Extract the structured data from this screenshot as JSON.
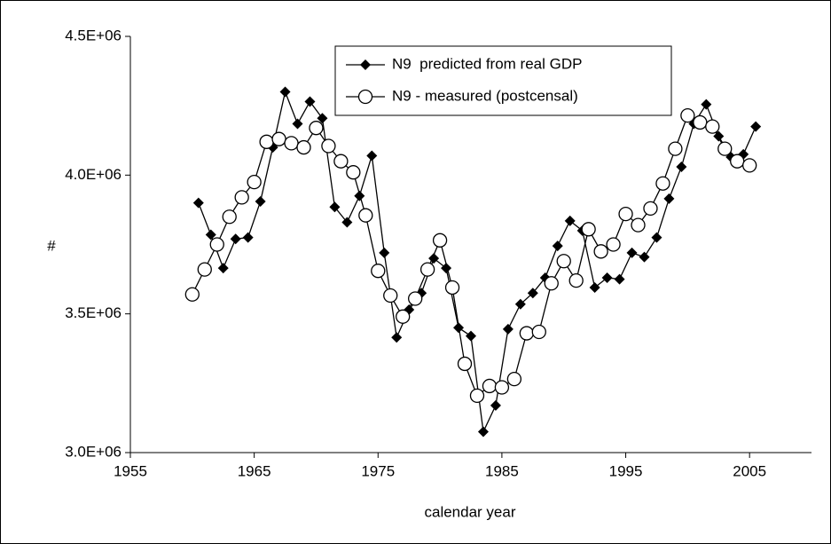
{
  "chart_data": {
    "type": "line",
    "x_label": "calendar year",
    "y_label": "#",
    "xlim": [
      1955,
      2010
    ],
    "xticks": [
      1955,
      1965,
      1975,
      1985,
      1995,
      2005
    ],
    "ylim": [
      3000000,
      4500000
    ],
    "yticks": [
      {
        "value": 3000000,
        "label": "3.0E+06"
      },
      {
        "value": 3500000,
        "label": "3.5E+06"
      },
      {
        "value": 4000000,
        "label": "4.0E+06"
      },
      {
        "value": 4500000,
        "label": "4.5E+06"
      }
    ],
    "grid": false,
    "legend": "top",
    "series": [
      {
        "name": "N9  predicted from real GDP",
        "color": "#000000",
        "marker": "diamond",
        "x": [
          1960.5,
          1961.5,
          1962.5,
          1963.5,
          1964.5,
          1965.5,
          1966.5,
          1967.5,
          1968.5,
          1969.5,
          1970.5,
          1971.5,
          1972.5,
          1973.5,
          1974.5,
          1975.5,
          1976.5,
          1977.5,
          1978.5,
          1979.5,
          1980.5,
          1981.5,
          1982.5,
          1983.5,
          1984.5,
          1985.5,
          1986.5,
          1987.5,
          1988.5,
          1989.5,
          1990.5,
          1991.5,
          1992.5,
          1993.5,
          1994.5,
          1995.5,
          1996.5,
          1997.5,
          1998.5,
          1999.5,
          2000.5,
          2001.5,
          2002.5,
          2003.5,
          2004.5,
          2005.5
        ],
        "values": [
          3900000,
          3785000,
          3665000,
          3770000,
          3775000,
          3905000,
          4100000,
          4300000,
          4185000,
          4265000,
          4205000,
          3885000,
          3830000,
          3925000,
          4070000,
          3720000,
          3415000,
          3515000,
          3575000,
          3700000,
          3665000,
          3450000,
          3420000,
          3075000,
          3170000,
          3445000,
          3535000,
          3575000,
          3630000,
          3745000,
          3835000,
          3800000,
          3595000,
          3630000,
          3625000,
          3720000,
          3705000,
          3775000,
          3915000,
          4030000,
          4185000,
          4255000,
          4140000,
          4065000,
          4075000,
          4175000
        ]
      },
      {
        "name": "N9 - measured (postcensal)",
        "color": "#000000",
        "marker": "circle",
        "x": [
          1960,
          1961,
          1962,
          1963,
          1964,
          1965,
          1966,
          1967,
          1968,
          1969,
          1970,
          1971,
          1972,
          1973,
          1974,
          1975,
          1976,
          1977,
          1978,
          1979,
          1980,
          1981,
          1982,
          1983,
          1984,
          1985,
          1986,
          1987,
          1988,
          1989,
          1990,
          1991,
          1992,
          1993,
          1994,
          1995,
          1996,
          1997,
          1998,
          1999,
          2000,
          2001,
          2002,
          2003,
          2004,
          2005
        ],
        "values": [
          3570000,
          3660000,
          3750000,
          3850000,
          3920000,
          3975000,
          4120000,
          4130000,
          4115000,
          4100000,
          4170000,
          4105000,
          4050000,
          4010000,
          3855000,
          3655000,
          3566000,
          3490000,
          3555000,
          3660000,
          3765000,
          3595000,
          3320000,
          3205000,
          3240000,
          3235000,
          3265000,
          3430000,
          3435000,
          3610000,
          3690000,
          3620000,
          3805000,
          3725000,
          3750000,
          3860000,
          3820000,
          3880000,
          3970000,
          4095000,
          4215000,
          4190000,
          4175000,
          4095000,
          4050000,
          4035000
        ]
      }
    ]
  }
}
